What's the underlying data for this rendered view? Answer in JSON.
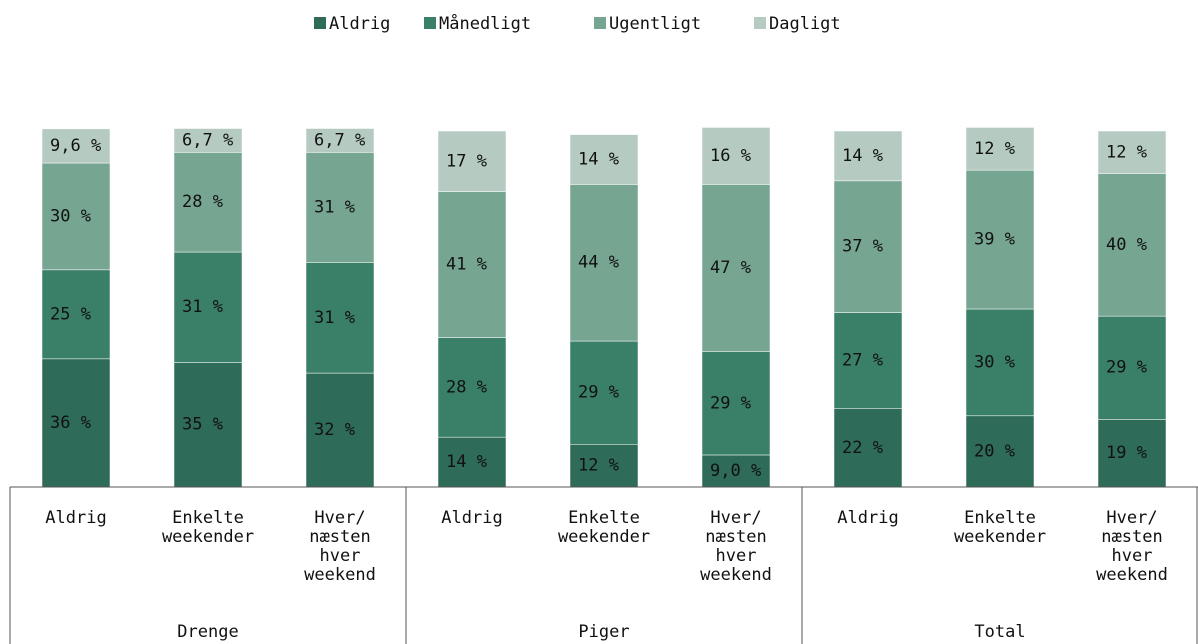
{
  "chart_data": {
    "type": "stacked-bar",
    "groups": [
      "Drenge",
      "Piger",
      "Total"
    ],
    "categories": [
      [
        "Aldrig"
      ],
      [
        "Enkelte",
        "weekender"
      ],
      [
        "Hver/",
        "næsten",
        "hver",
        "weekend"
      ],
      [
        "Aldrig"
      ],
      [
        "Enkelte",
        "weekender"
      ],
      [
        "Hver/",
        "næsten",
        "hver",
        "weekend"
      ],
      [
        "Aldrig"
      ],
      [
        "Enkelte",
        "weekender"
      ],
      [
        "Hver/",
        "næsten",
        "hver",
        "weekend"
      ]
    ],
    "ylim": [
      0,
      100
    ],
    "series": [
      {
        "name": "Aldrig",
        "color": "#2e6b58",
        "values": [
          36,
          35,
          32,
          14,
          12,
          9.0,
          22,
          20,
          19
        ],
        "value_labels": [
          "36 %",
          "35 %",
          "32 %",
          "14 %",
          "12 %",
          "9,0 %",
          "22 %",
          "20 %",
          "19 %"
        ]
      },
      {
        "name": "Månedligt",
        "color": "#3a8068",
        "values": [
          25,
          31,
          31,
          28,
          29,
          29,
          27,
          30,
          29
        ],
        "value_labels": [
          "25 %",
          "31 %",
          "31 %",
          "28 %",
          "29 %",
          "29 %",
          "27 %",
          "30 %",
          "29 %"
        ]
      },
      {
        "name": "Ugentligt",
        "color": "#76a592",
        "values": [
          30,
          28,
          31,
          41,
          44,
          47,
          37,
          39,
          40
        ],
        "value_labels": [
          "30 %",
          "28 %",
          "31 %",
          "41 %",
          "44 %",
          "47 %",
          "37 %",
          "39 %",
          "40 %"
        ]
      },
      {
        "name": "Dagligt",
        "color": "#b5cbc2",
        "values": [
          9.6,
          6.7,
          6.7,
          17,
          14,
          16,
          14,
          12,
          12
        ],
        "value_labels": [
          "9,6 %",
          "6,7 %",
          "6,7 %",
          "17 %",
          "14 %",
          "16 %",
          "14 %",
          "12 %",
          "12 %"
        ]
      }
    ]
  }
}
